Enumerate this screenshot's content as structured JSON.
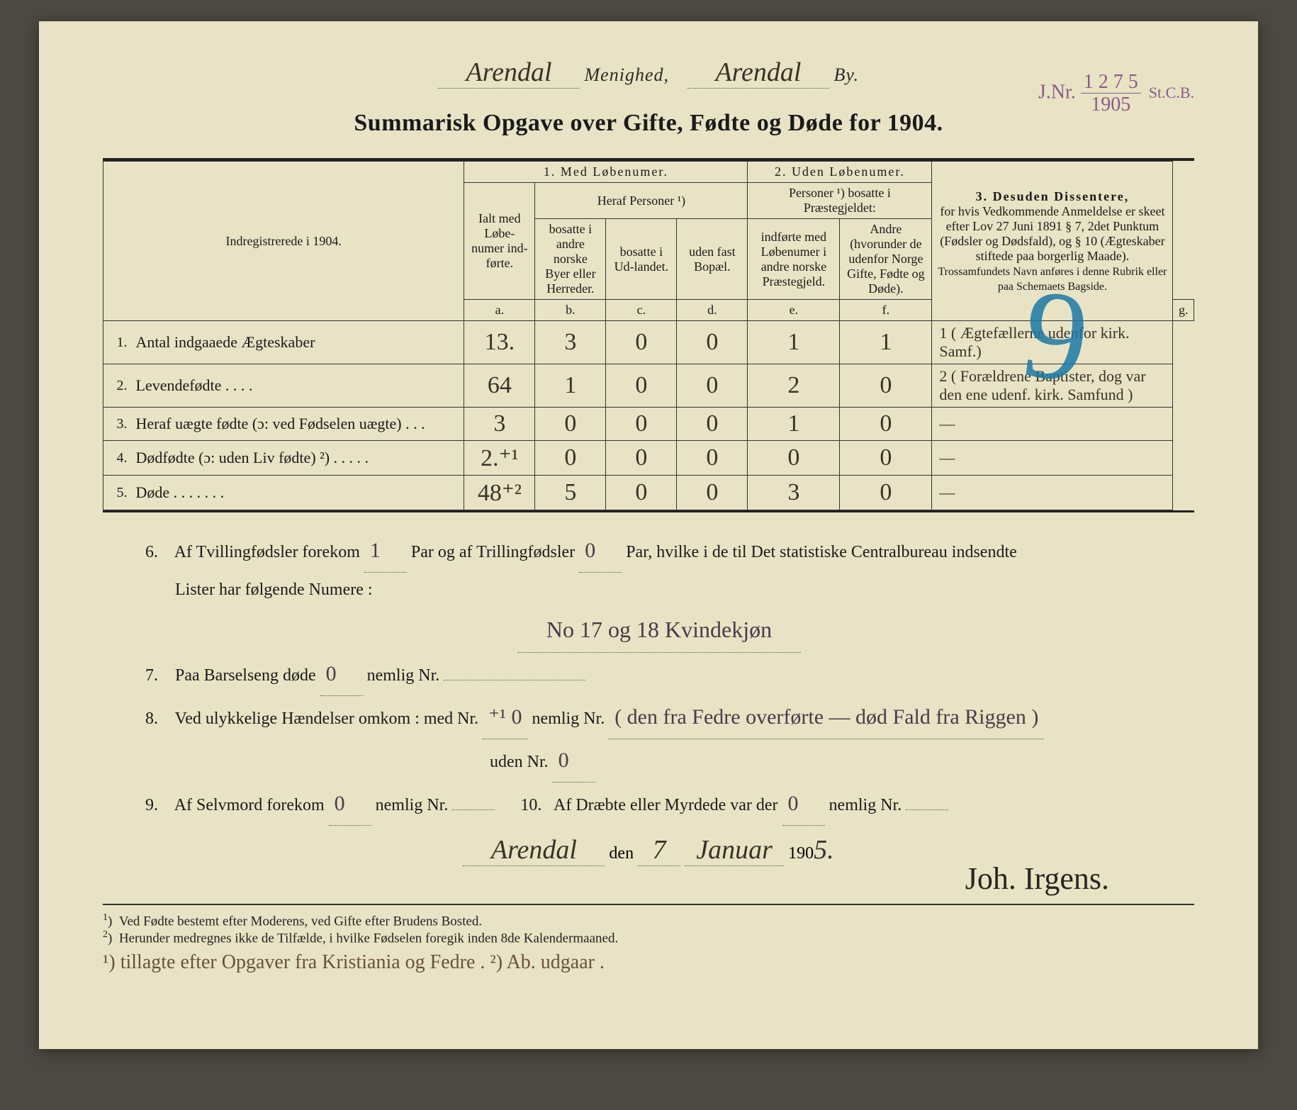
{
  "stamp": {
    "prefix": "J.Nr.",
    "number": "1 2 7 5",
    "suffix": "St.C.B.",
    "year": "1905"
  },
  "header": {
    "menighed_hw": "Arendal",
    "menighed_label": "Menighed,",
    "by_hw": "Arendal",
    "by_label": "By."
  },
  "title": "Summarisk Opgave over Gifte, Fødte og Døde for 1904.",
  "blue_mark": "9",
  "columns": {
    "indreg": "Indregistrerede i 1904.",
    "group1": "1.  Med  Løbenumer.",
    "group2": "2. Uden Løbenumer.",
    "group3_title": "3.  Desuden Dissentere,",
    "group3_body": "for hvis Vedkommende Anmeldelse er skeet efter Lov 27 Juni 1891 § 7, 2det Punktum (Fødsler og Dødsfald), og § 10 (Ægteskaber stiftede paa borgerlig Maade).",
    "group3_small": "Trossamfundets Navn anføres i denne Rubrik eller paa Schemaets Bagside.",
    "a_head": "Ialt med Løbe-numer ind-førte.",
    "heraf": "Heraf Personer ¹)",
    "b_head": "bosatte i andre norske Byer eller Herreder.",
    "c_head": "bosatte i Ud-landet.",
    "d_head": "uden fast Bopæl.",
    "pers2": "Personer ¹) bosatte i Præstegjeldet:",
    "e_head": "indførte med Løbenumer i andre norske Præstegjeld.",
    "f_head": "Andre (hvorunder de udenfor Norge Gifte, Fødte og Døde).",
    "letters": {
      "a": "a.",
      "b": "b.",
      "c": "c.",
      "d": "d.",
      "e": "e.",
      "f": "f.",
      "g": "g."
    }
  },
  "rows": [
    {
      "n": "1.",
      "label": "Antal indgaaede Ægteskaber",
      "a": "13.",
      "b": "3",
      "c": "0",
      "d": "0",
      "e": "1",
      "f": "1",
      "g": "1 ( Ægtefællerne udenfor kirk. Samf.)"
    },
    {
      "n": "2.",
      "label": "Levendefødte  .  .  .  .",
      "a": "64",
      "b": "1",
      "c": "0",
      "d": "0",
      "e": "2",
      "f": "0",
      "g": "2 ( Forældrene Baptister, dog var den ene udenf. kirk. Samfund )"
    },
    {
      "n": "3.",
      "label": "Heraf uægte fødte (ɔ: ved Fødselen uægte)  .  .  .",
      "a": "3",
      "b": "0",
      "c": "0",
      "d": "0",
      "e": "1",
      "f": "0",
      "g": "—"
    },
    {
      "n": "4.",
      "label": "Dødfødte  (ɔ: uden Liv fødte) ²)  .  .  .  .  .",
      "a": "2.⁺¹",
      "b": "0",
      "c": "0",
      "d": "0",
      "e": "0",
      "f": "0",
      "g": "—"
    },
    {
      "n": "5.",
      "label": "Døde  .  .  .  .  .  .  .",
      "a": "48⁺²",
      "b": "5",
      "c": "0",
      "d": "0",
      "e": "3",
      "f": "0",
      "g": "—"
    }
  ],
  "notes": {
    "n6a": "Af Tvillingfødsler forekom",
    "n6_tvilling": "1",
    "n6b": "Par og af Trillingfødsler",
    "n6_trilling": "0",
    "n6c": "Par, hvilke i de til Det statistiske Centralbureau indsendte",
    "n6d": "Lister har følgende Numere :",
    "n6_numere": "No 17 og 18  Kvindekjøn",
    "n7a": "Paa Barselseng døde",
    "n7_v": "0",
    "n7b": "nemlig Nr.",
    "n8a": "Ved ulykkelige Hændelser omkom :   med Nr.",
    "n8_med": "⁺¹ 0",
    "n8b": "nemlig Nr.",
    "n8_text": "( den fra Fedre overførte — død Fald fra Riggen )",
    "n8c": "uden Nr.",
    "n8_uden": "0",
    "n9a": "Af Selvmord forekom",
    "n9_v": "0",
    "n9b": "nemlig Nr.",
    "n10a": "Af Dræbte eller Myrdede var der",
    "n10_v": "0",
    "n10b": "nemlig Nr."
  },
  "signature": {
    "place": "Arendal",
    "den": "den",
    "day": "7",
    "month": "Januar",
    "year_prefix": "190",
    "year_last": "5.",
    "name": "Joh. Irgens."
  },
  "footnotes": {
    "f1": "Ved Fødte bestemt efter Moderens, ved Gifte efter Brudens Bosted.",
    "f2": "Herunder medregnes ikke de Tilfælde, i hvilke Fødselen foregik inden 8de Kalendermaaned."
  },
  "bottom_hand": "¹) tillagte efter Opgaver fra Kristiania og Fedre .   ²) Ab. udgaar ."
}
